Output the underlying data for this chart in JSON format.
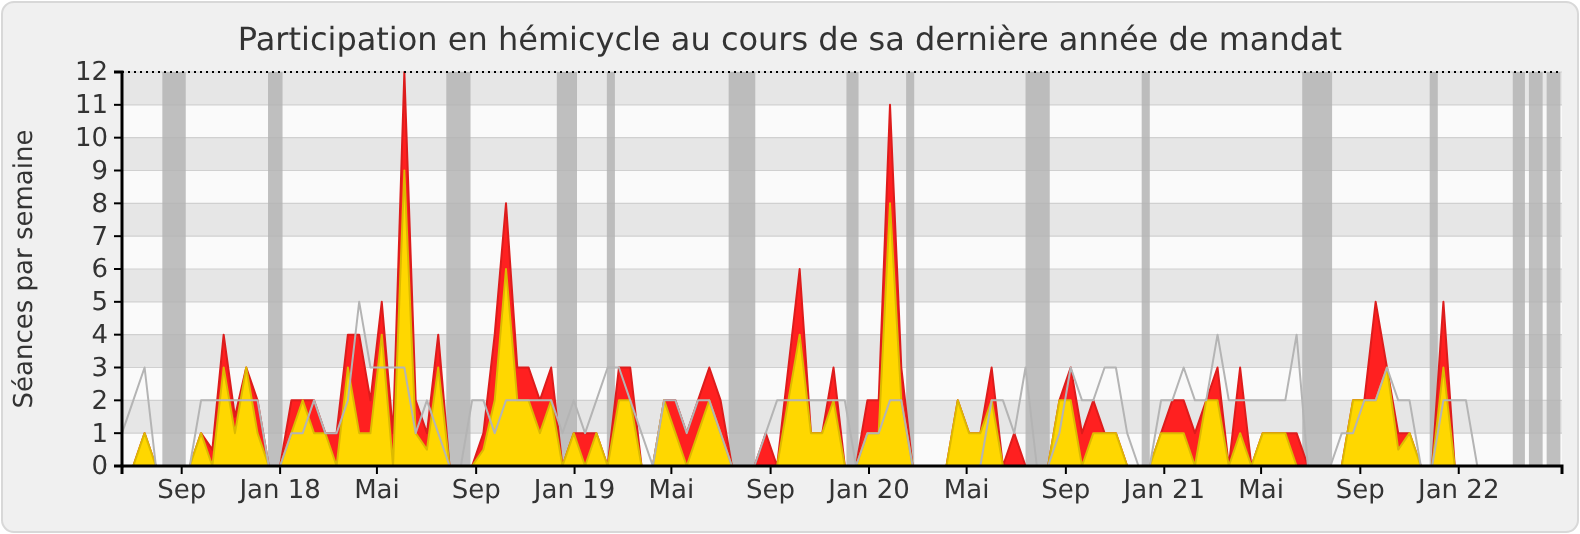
{
  "chart_data": {
    "type": "area",
    "title": "Participation en hémicycle au cours de sa dernière année de mandat",
    "ylabel": "Séances par semaine",
    "x": [
      "2017-06-19",
      "2017-07-03",
      "2017-07-17",
      "2017-07-31",
      "2017-08-14",
      "2017-08-28",
      "2017-09-11",
      "2017-09-25",
      "2017-10-09",
      "2017-10-23",
      "2017-11-06",
      "2017-11-20",
      "2017-12-04",
      "2017-12-18",
      "2018-01-01",
      "2018-01-15",
      "2018-01-29",
      "2018-02-12",
      "2018-02-26",
      "2018-03-12",
      "2018-03-26",
      "2018-04-09",
      "2018-04-23",
      "2018-05-07",
      "2018-05-21",
      "2018-06-04",
      "2018-06-18",
      "2018-07-02",
      "2018-07-16",
      "2018-07-30",
      "2018-08-13",
      "2018-08-27",
      "2018-09-10",
      "2018-09-24",
      "2018-10-08",
      "2018-10-22",
      "2018-11-05",
      "2018-11-19",
      "2018-12-03",
      "2018-12-17",
      "2018-12-31",
      "2019-01-14",
      "2019-01-28",
      "2019-02-11",
      "2019-02-25",
      "2019-03-11",
      "2019-03-25",
      "2019-04-08",
      "2019-04-22",
      "2019-05-06",
      "2019-05-20",
      "2019-06-03",
      "2019-06-17",
      "2019-07-01",
      "2019-07-15",
      "2019-07-29",
      "2019-08-12",
      "2019-08-26",
      "2019-09-09",
      "2019-09-23",
      "2019-10-07",
      "2019-10-21",
      "2019-11-04",
      "2019-11-18",
      "2019-12-02",
      "2019-12-16",
      "2019-12-30",
      "2020-01-13",
      "2020-01-27",
      "2020-02-10",
      "2020-02-24",
      "2020-03-09",
      "2020-03-23",
      "2020-04-06",
      "2020-04-20",
      "2020-05-04",
      "2020-05-18",
      "2020-06-01",
      "2020-06-15",
      "2020-06-29",
      "2020-07-13",
      "2020-07-27",
      "2020-08-10",
      "2020-08-24",
      "2020-09-07",
      "2020-09-21",
      "2020-10-05",
      "2020-10-19",
      "2020-11-02",
      "2020-11-16",
      "2020-11-30",
      "2020-12-14",
      "2020-12-28",
      "2021-01-11",
      "2021-01-25",
      "2021-02-08",
      "2021-02-22",
      "2021-03-08",
      "2021-03-22",
      "2021-04-05",
      "2021-04-19",
      "2021-05-03",
      "2021-05-17",
      "2021-05-31",
      "2021-06-14",
      "2021-06-28",
      "2021-07-12",
      "2021-07-26",
      "2021-08-09",
      "2021-08-23",
      "2021-09-06",
      "2021-09-20",
      "2021-10-04",
      "2021-10-18",
      "2021-11-01",
      "2021-11-15",
      "2021-11-29",
      "2021-12-13",
      "2021-12-27",
      "2022-01-10",
      "2022-01-24",
      "2022-02-07",
      "2022-02-21",
      "2022-03-07"
    ],
    "series": [
      {
        "color": "#ff2020",
        "values": [
          0,
          0,
          1,
          0,
          0,
          0,
          0,
          1,
          0.5,
          4,
          1.5,
          3,
          2,
          0,
          0,
          2,
          2,
          2,
          1,
          1,
          4,
          4,
          2,
          5,
          1,
          12,
          2,
          1,
          4,
          0,
          0,
          0,
          1,
          4,
          8,
          3,
          3,
          2,
          3,
          0,
          1,
          1,
          1,
          0,
          3,
          3,
          0,
          0,
          2,
          2,
          1,
          2,
          3,
          2,
          0,
          0,
          0,
          1,
          0,
          3,
          6,
          1,
          1,
          3,
          0,
          0,
          2,
          2,
          11,
          3,
          0,
          0,
          0,
          0,
          2,
          1,
          1,
          3,
          0,
          1,
          0,
          0,
          0,
          2,
          3,
          1,
          2,
          1,
          1,
          0,
          0,
          0,
          1,
          2,
          2,
          1,
          2,
          3,
          0,
          3,
          0,
          1,
          1,
          1,
          1,
          0,
          0,
          0,
          0,
          2,
          2,
          5,
          3,
          1,
          1,
          0,
          0,
          5,
          0,
          0,
          0,
          0,
          0,
          0
        ]
      },
      {
        "color": "#ffd700",
        "values": [
          0,
          0,
          1,
          0,
          0,
          0,
          0,
          1,
          0,
          3,
          1,
          3,
          1,
          0,
          0,
          1,
          2,
          1,
          1,
          0,
          3,
          1,
          1,
          4,
          0,
          9,
          1,
          0.5,
          3,
          0,
          0,
          0,
          0.5,
          2,
          6,
          2,
          2,
          1,
          2,
          0,
          1,
          0,
          1,
          0,
          2,
          2,
          0,
          0,
          2,
          1,
          0,
          1,
          2,
          1,
          0,
          0,
          0,
          0,
          0,
          2,
          4,
          1,
          1,
          2,
          0,
          0,
          1,
          1,
          8,
          2,
          0,
          0,
          0,
          0,
          2,
          1,
          1,
          2,
          0,
          0,
          0,
          0,
          0,
          2,
          2,
          0,
          1,
          1,
          1,
          0,
          0,
          0,
          1,
          1,
          1,
          0,
          2,
          2,
          0,
          1,
          0,
          1,
          1,
          1,
          0,
          0,
          0,
          0,
          0,
          2,
          2,
          2,
          3,
          0.5,
          1,
          0,
          0,
          3,
          0,
          0,
          0,
          0,
          0,
          0
        ]
      },
      {
        "type": "line",
        "color": "#b4b4b4",
        "values": [
          1,
          2,
          3,
          0,
          0,
          0,
          0,
          2,
          2,
          2,
          2,
          2,
          2,
          0,
          0,
          1,
          1,
          2,
          1,
          1,
          2,
          5,
          3,
          3,
          3,
          3,
          1,
          2,
          1,
          0,
          0,
          2,
          2,
          1,
          2,
          2,
          2,
          2,
          2,
          1,
          2,
          1,
          2,
          3,
          3,
          2,
          1,
          0,
          2,
          2,
          1,
          2,
          2,
          1,
          0,
          0,
          0,
          1,
          2,
          2,
          2,
          2,
          2,
          2,
          2,
          0,
          1,
          1,
          2,
          2,
          0,
          0,
          0,
          0,
          0,
          0,
          0,
          2,
          2,
          1,
          3,
          0,
          0,
          1,
          3,
          2,
          2,
          3,
          3,
          1,
          0,
          0,
          2,
          2,
          3,
          2,
          2,
          4,
          2,
          2,
          2,
          2,
          2,
          2,
          4,
          0,
          0,
          0,
          1,
          1,
          2,
          2,
          3,
          2,
          2,
          0,
          0,
          2,
          2,
          2,
          0,
          0,
          0,
          0
        ]
      }
    ],
    "xlim": [
      "2017-06-19",
      "2022-05-09"
    ],
    "xticks": [
      {
        "value": "2017-09-01",
        "label": "Sep"
      },
      {
        "value": "2018-01-01",
        "label": "Jan 18"
      },
      {
        "value": "2018-05-01",
        "label": "Mai"
      },
      {
        "value": "2018-09-01",
        "label": "Sep"
      },
      {
        "value": "2019-01-01",
        "label": "Jan 19"
      },
      {
        "value": "2019-05-01",
        "label": "Mai"
      },
      {
        "value": "2019-09-01",
        "label": "Sep"
      },
      {
        "value": "2020-01-01",
        "label": "Jan 20"
      },
      {
        "value": "2020-05-01",
        "label": "Mai"
      },
      {
        "value": "2020-09-01",
        "label": "Sep"
      },
      {
        "value": "2021-01-01",
        "label": "Jan 21"
      },
      {
        "value": "2021-05-01",
        "label": "Mai"
      },
      {
        "value": "2021-09-01",
        "label": "Sep"
      },
      {
        "value": "2022-01-01",
        "label": "Jan 22"
      }
    ],
    "ylim": [
      0,
      12
    ],
    "yticks": [
      0,
      1,
      2,
      3,
      4,
      5,
      6,
      7,
      8,
      9,
      10,
      11,
      12
    ],
    "grid": "y",
    "bands": [
      {
        "axis": "x",
        "from": "2017-08-08",
        "to": "2017-09-06",
        "color": "#b4b4b4"
      },
      {
        "axis": "x",
        "from": "2017-12-17",
        "to": "2018-01-04",
        "color": "#b4b4b4"
      },
      {
        "axis": "x",
        "from": "2018-07-26",
        "to": "2018-08-25",
        "color": "#b4b4b4"
      },
      {
        "axis": "x",
        "from": "2018-12-10",
        "to": "2019-01-04",
        "color": "#b4b4b4"
      },
      {
        "axis": "x",
        "from": "2019-02-10",
        "to": "2019-02-20",
        "color": "#b4b4b4"
      },
      {
        "axis": "x",
        "from": "2019-07-11",
        "to": "2019-08-13",
        "color": "#b4b4b4"
      },
      {
        "axis": "x",
        "from": "2019-12-04",
        "to": "2019-12-19",
        "color": "#b4b4b4"
      },
      {
        "axis": "x",
        "from": "2020-02-16",
        "to": "2020-02-26",
        "color": "#b4b4b4"
      },
      {
        "axis": "x",
        "from": "2020-07-13",
        "to": "2020-08-12",
        "color": "#b4b4b4"
      },
      {
        "axis": "x",
        "from": "2020-12-04",
        "to": "2020-12-14",
        "color": "#b4b4b4"
      },
      {
        "axis": "x",
        "from": "2021-06-21",
        "to": "2021-07-28",
        "color": "#b4b4b4"
      },
      {
        "axis": "x",
        "from": "2021-11-26",
        "to": "2021-12-06",
        "color": "#b4b4b4"
      },
      {
        "axis": "x",
        "from": "2022-03-09",
        "to": "2022-03-24",
        "color": "#b4b4b4"
      },
      {
        "axis": "x",
        "from": "2022-03-29",
        "to": "2022-04-15",
        "color": "#b4b4b4"
      },
      {
        "axis": "x",
        "from": "2022-04-20",
        "to": "2022-05-07",
        "color": "#b4b4b4"
      }
    ]
  }
}
